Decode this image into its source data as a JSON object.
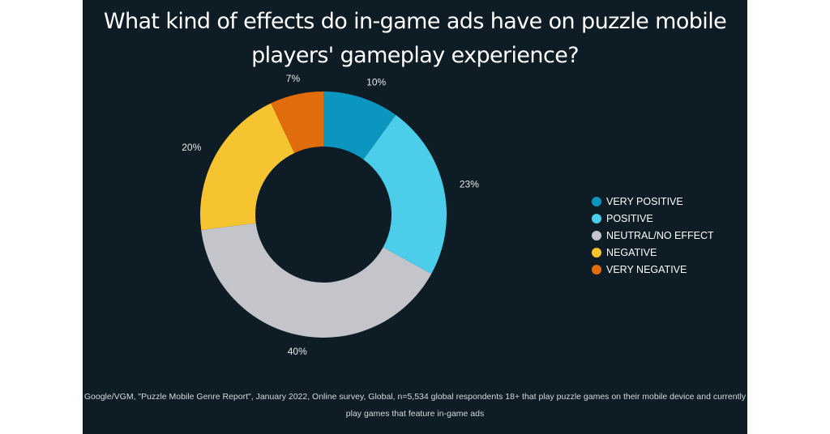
{
  "chart_data": {
    "type": "pie",
    "donut": true,
    "title": "What kind of effects do in-game ads have on puzzle mobile players' gameplay experience?",
    "categories": [
      "VERY POSITIVE",
      "POSITIVE",
      "NEUTRAL/NO EFFECT",
      "NEGATIVE",
      "VERY NEGATIVE"
    ],
    "values": [
      10,
      23,
      40,
      20,
      7
    ],
    "data_labels": [
      "10%",
      "23%",
      "40%",
      "20%",
      "7%"
    ],
    "colors": [
      "#0a96bf",
      "#4ccde9",
      "#c4c5ca",
      "#f6c431",
      "#e06c0c"
    ],
    "legend_position": "right",
    "source": "Google/VGM, \"Puzzle Mobile Genre Report\", January 2022, Online survey, Global, n=5,534 global respondents 18+ that play puzzle games on their mobile device and currently play games that feature in-game ads"
  }
}
